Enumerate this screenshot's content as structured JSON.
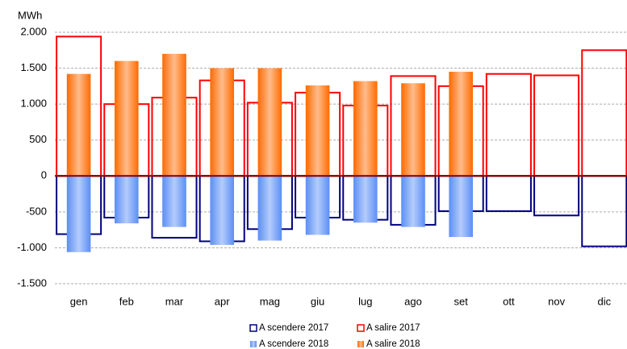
{
  "chart_data": {
    "type": "bar",
    "y_label": "MWh",
    "categories": [
      "gen",
      "feb",
      "mar",
      "apr",
      "mag",
      "giu",
      "lug",
      "ago",
      "set",
      "ott",
      "nov",
      "dic"
    ],
    "series": [
      {
        "name": "A scendere 2017",
        "color": "#000080",
        "filled": false,
        "values": [
          -810,
          -580,
          -860,
          -910,
          -740,
          -580,
          -610,
          -680,
          -490,
          -490,
          -550,
          -980
        ]
      },
      {
        "name": "A salire 2017",
        "color": "#ff0000",
        "filled": false,
        "values": [
          1940,
          1000,
          1090,
          1330,
          1020,
          1160,
          980,
          1390,
          1250,
          1420,
          1400,
          1750
        ]
      },
      {
        "name": "A scendere 2018",
        "color": "#5b8ef5",
        "filled": true,
        "values": [
          -1060,
          -660,
          -710,
          -960,
          -900,
          -820,
          -650,
          -710,
          -850,
          null,
          null,
          null
        ]
      },
      {
        "name": "A salire 2018",
        "color": "#ff6a00",
        "filled": true,
        "values": [
          1420,
          1600,
          1700,
          1500,
          1500,
          1260,
          1320,
          1290,
          1450,
          null,
          null,
          null
        ]
      }
    ],
    "ylim": [
      -1500,
      2000
    ],
    "yticks": [
      {
        "value": -1500,
        "label": "-1.500"
      },
      {
        "value": -1000,
        "label": "-1.000"
      },
      -500,
      0,
      500,
      {
        "value": 1000,
        "label": "1.000"
      },
      {
        "value": 1500,
        "label": "1.500"
      },
      {
        "value": 2000,
        "label": "2.000"
      }
    ],
    "grid": true
  }
}
